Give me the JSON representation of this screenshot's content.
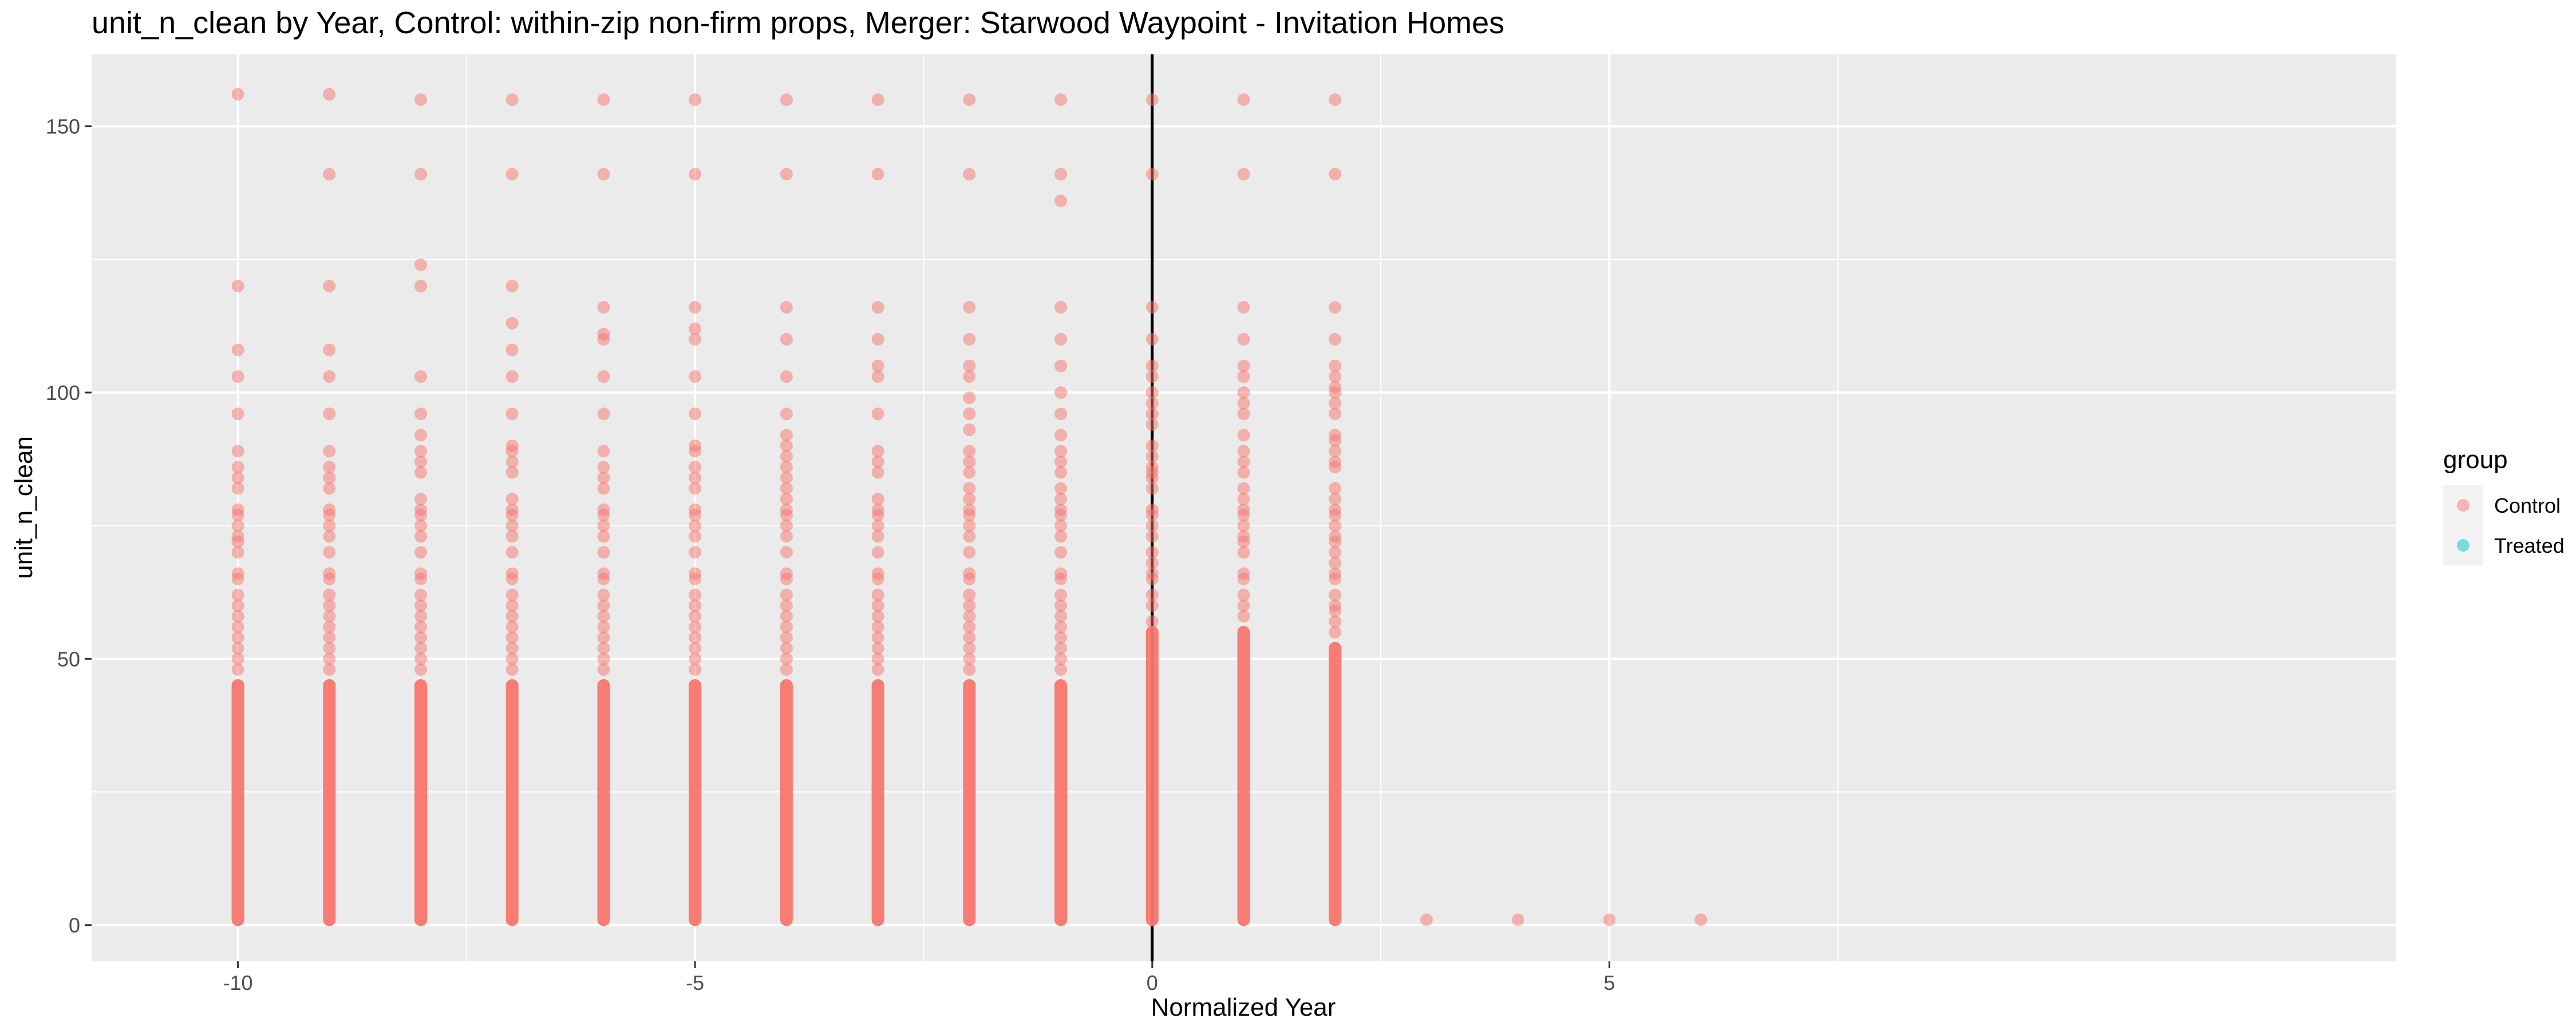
{
  "chart_data": {
    "type": "scatter",
    "title": "unit_n_clean by Year, Control: within-zip non-firm props, Merger: Starwood Waypoint - Invitation Homes",
    "xlabel": "Normalized Year",
    "ylabel": "unit_n_clean",
    "xlim": [
      -11.6,
      13.6
    ],
    "ylim": [
      -6.8,
      163.5
    ],
    "x_ticks": [
      -10,
      -5,
      0,
      5
    ],
    "y_ticks": [
      0,
      50,
      100,
      150
    ],
    "x_tick_labels": [
      "-10",
      "-5",
      "0",
      "5"
    ],
    "y_tick_labels": [
      "0",
      "50",
      "100",
      "150"
    ],
    "grid": true,
    "vline_x": 0,
    "background": "#ebebeb",
    "legend": {
      "title": "group",
      "placement": "right",
      "entries": [
        {
          "label": "Control",
          "color": "#f8766d"
        },
        {
          "label": "Treated",
          "color": "#00bfc4"
        }
      ]
    },
    "series": [
      {
        "name": "Control",
        "color": "#f8766d",
        "columns": [
          {
            "x": -10,
            "dense_to": 45,
            "y": [
              48,
              50,
              52,
              54,
              56,
              58,
              60,
              62,
              65,
              66,
              70,
              72,
              73,
              75,
              77,
              78,
              82,
              84,
              86,
              89,
              96,
              103,
              108,
              120,
              156
            ]
          },
          {
            "x": -9,
            "dense_to": 45,
            "y": [
              48,
              50,
              52,
              54,
              56,
              58,
              60,
              62,
              65,
              66,
              70,
              73,
              75,
              77,
              78,
              82,
              84,
              86,
              89,
              96,
              103,
              108,
              120,
              141,
              156
            ]
          },
          {
            "x": -8,
            "dense_to": 45,
            "y": [
              48,
              50,
              52,
              54,
              56,
              58,
              60,
              62,
              65,
              66,
              70,
              73,
              75,
              77,
              78,
              80,
              85,
              87,
              89,
              92,
              96,
              103,
              120,
              124,
              141,
              155
            ]
          },
          {
            "x": -7,
            "dense_to": 45,
            "y": [
              48,
              50,
              52,
              54,
              56,
              58,
              60,
              62,
              65,
              66,
              70,
              73,
              75,
              77,
              78,
              80,
              85,
              87,
              89,
              90,
              96,
              103,
              108,
              113,
              120,
              141,
              155
            ]
          },
          {
            "x": -6,
            "dense_to": 45,
            "y": [
              48,
              50,
              52,
              54,
              56,
              58,
              60,
              62,
              65,
              66,
              70,
              73,
              75,
              77,
              78,
              82,
              84,
              86,
              89,
              96,
              103,
              110,
              111,
              116,
              141,
              155
            ]
          },
          {
            "x": -5,
            "dense_to": 45,
            "y": [
              48,
              50,
              52,
              54,
              56,
              58,
              60,
              62,
              65,
              66,
              70,
              73,
              75,
              77,
              78,
              82,
              84,
              86,
              89,
              90,
              96,
              103,
              110,
              112,
              116,
              141,
              155
            ]
          },
          {
            "x": -4,
            "dense_to": 45,
            "y": [
              48,
              50,
              52,
              54,
              56,
              58,
              60,
              62,
              65,
              66,
              70,
              73,
              75,
              77,
              78,
              80,
              82,
              84,
              86,
              88,
              90,
              92,
              96,
              103,
              110,
              116,
              141,
              155
            ]
          },
          {
            "x": -3,
            "dense_to": 45,
            "y": [
              48,
              50,
              52,
              54,
              56,
              58,
              60,
              62,
              65,
              66,
              70,
              73,
              75,
              77,
              78,
              80,
              85,
              87,
              89,
              96,
              103,
              105,
              110,
              116,
              141,
              155
            ]
          },
          {
            "x": -2,
            "dense_to": 45,
            "y": [
              48,
              50,
              52,
              54,
              56,
              58,
              60,
              62,
              65,
              66,
              70,
              73,
              75,
              77,
              78,
              80,
              82,
              85,
              87,
              89,
              93,
              96,
              99,
              103,
              105,
              110,
              116,
              141,
              155
            ]
          },
          {
            "x": -1,
            "dense_to": 45,
            "y": [
              48,
              50,
              52,
              54,
              56,
              58,
              60,
              62,
              65,
              66,
              70,
              73,
              75,
              77,
              78,
              80,
              82,
              85,
              87,
              89,
              92,
              96,
              100,
              105,
              110,
              116,
              136,
              141,
              155
            ]
          },
          {
            "x": 0,
            "dense_to": 55,
            "y": [
              57,
              60,
              62,
              65,
              66,
              68,
              70,
              73,
              75,
              77,
              78,
              82,
              84,
              85,
              86,
              88,
              90,
              94,
              96,
              98,
              100,
              103,
              105,
              110,
              116,
              141,
              155
            ]
          },
          {
            "x": 1,
            "dense_to": 55,
            "y": [
              58,
              60,
              62,
              65,
              66,
              70,
              72,
              73,
              75,
              77,
              78,
              80,
              82,
              85,
              87,
              89,
              92,
              96,
              98,
              100,
              103,
              105,
              110,
              116,
              141,
              155
            ]
          },
          {
            "x": 2,
            "dense_to": 52,
            "y": [
              55,
              57,
              59,
              60,
              62,
              65,
              66,
              68,
              70,
              72,
              73,
              75,
              77,
              78,
              80,
              82,
              86,
              87,
              89,
              91,
              92,
              96,
              98,
              100,
              101,
              103,
              105,
              110,
              116,
              141,
              155
            ]
          },
          {
            "x": 3,
            "dense_to": 0,
            "y": [
              1
            ]
          },
          {
            "x": 4,
            "dense_to": 0,
            "y": [
              1
            ]
          },
          {
            "x": 5,
            "dense_to": 0,
            "y": [
              1
            ]
          },
          {
            "x": 6,
            "dense_to": 0,
            "y": [
              1
            ]
          }
        ]
      },
      {
        "name": "Treated",
        "color": "#00bfc4",
        "columns": []
      }
    ]
  }
}
